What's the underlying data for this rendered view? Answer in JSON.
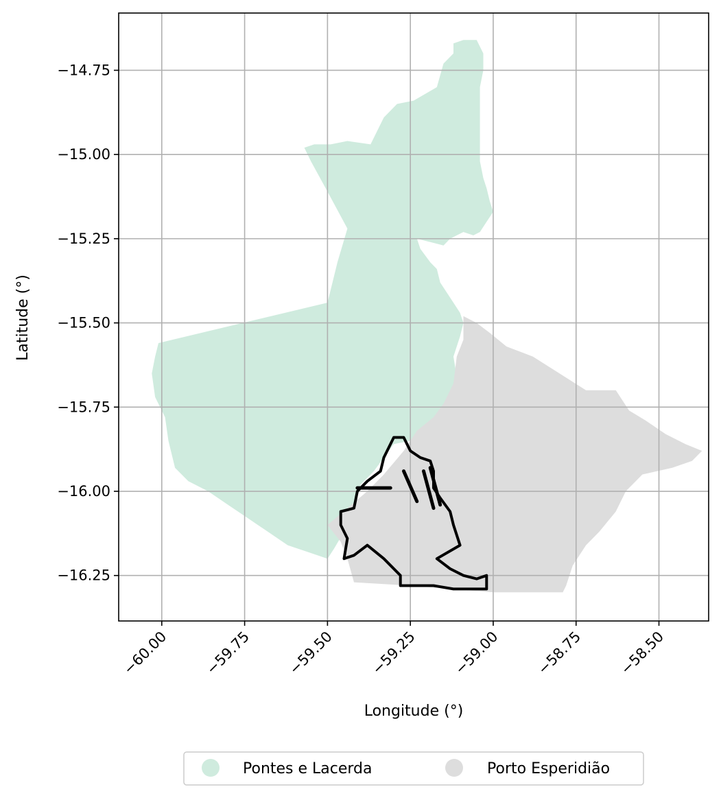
{
  "chart_data": {
    "type": "map",
    "xlabel": "Longitude (°)",
    "ylabel": "Latitude (°)",
    "xlim": [
      -60.13,
      -58.35
    ],
    "ylim": [
      -16.385,
      -14.58
    ],
    "xticks": [
      -60.0,
      -59.75,
      -59.5,
      -59.25,
      -59.0,
      -58.75,
      -58.5
    ],
    "xtick_labels": [
      "−60.00",
      "−59.75",
      "−59.50",
      "−59.25",
      "−59.00",
      "−58.75",
      "−58.50"
    ],
    "yticks": [
      -14.75,
      -15.0,
      -15.25,
      -15.5,
      -15.75,
      -16.0,
      -16.25
    ],
    "ytick_labels": [
      "−14.75",
      "−15.00",
      "−15.25",
      "−15.50",
      "−15.75",
      "−16.00",
      "−16.25"
    ],
    "grid": true,
    "legend": {
      "placement": "bottom-center",
      "entries": [
        {
          "label": "Pontes e Lacerda",
          "color": "#cfebde"
        },
        {
          "label": "Porto Esperidião",
          "color": "#dddddd"
        }
      ]
    },
    "regions": [
      {
        "name": "Pontes e Lacerda",
        "color": "#cfebde",
        "polygon": [
          [
            -59.09,
            -14.66
          ],
          [
            -59.05,
            -14.66
          ],
          [
            -59.03,
            -14.7
          ],
          [
            -59.03,
            -14.75
          ],
          [
            -59.04,
            -14.8
          ],
          [
            -59.04,
            -14.88
          ],
          [
            -59.04,
            -14.95
          ],
          [
            -59.04,
            -15.02
          ],
          [
            -59.03,
            -15.07
          ],
          [
            -59.02,
            -15.1
          ],
          [
            -59.01,
            -15.14
          ],
          [
            -59.0,
            -15.17
          ],
          [
            -59.02,
            -15.2
          ],
          [
            -59.04,
            -15.23
          ],
          [
            -59.06,
            -15.24
          ],
          [
            -59.09,
            -15.23
          ],
          [
            -59.13,
            -15.25
          ],
          [
            -59.15,
            -15.27
          ],
          [
            -59.19,
            -15.26
          ],
          [
            -59.23,
            -15.25
          ],
          [
            -59.22,
            -15.28
          ],
          [
            -59.19,
            -15.32
          ],
          [
            -59.17,
            -15.34
          ],
          [
            -59.16,
            -15.38
          ],
          [
            -59.14,
            -15.41
          ],
          [
            -59.12,
            -15.44
          ],
          [
            -59.1,
            -15.47
          ],
          [
            -59.09,
            -15.5
          ],
          [
            -59.1,
            -15.54
          ],
          [
            -59.12,
            -15.6
          ],
          [
            -59.11,
            -15.66
          ],
          [
            -59.12,
            -15.72
          ],
          [
            -59.14,
            -15.77
          ],
          [
            -59.17,
            -15.81
          ],
          [
            -59.2,
            -15.84
          ],
          [
            -59.25,
            -15.85
          ],
          [
            -59.3,
            -15.86
          ],
          [
            -59.36,
            -15.94
          ],
          [
            -59.4,
            -15.98
          ],
          [
            -59.42,
            -16.05
          ],
          [
            -59.44,
            -16.08
          ],
          [
            -59.45,
            -16.12
          ],
          [
            -59.48,
            -16.17
          ],
          [
            -59.5,
            -16.2
          ],
          [
            -59.56,
            -16.18
          ],
          [
            -59.62,
            -16.16
          ],
          [
            -59.68,
            -16.12
          ],
          [
            -59.74,
            -16.08
          ],
          [
            -59.8,
            -16.04
          ],
          [
            -59.86,
            -16.0
          ],
          [
            -59.92,
            -15.97
          ],
          [
            -59.96,
            -15.93
          ],
          [
            -59.98,
            -15.85
          ],
          [
            -59.99,
            -15.78
          ],
          [
            -60.02,
            -15.72
          ],
          [
            -60.03,
            -15.65
          ],
          [
            -60.02,
            -15.6
          ],
          [
            -60.01,
            -15.56
          ],
          [
            -59.5,
            -15.44
          ],
          [
            -59.47,
            -15.32
          ],
          [
            -59.44,
            -15.22
          ],
          [
            -59.5,
            -15.11
          ],
          [
            -59.55,
            -15.02
          ],
          [
            -59.57,
            -14.98
          ],
          [
            -59.54,
            -14.97
          ],
          [
            -59.49,
            -14.97
          ],
          [
            -59.44,
            -14.96
          ],
          [
            -59.37,
            -14.97
          ],
          [
            -59.33,
            -14.89
          ],
          [
            -59.29,
            -14.85
          ],
          [
            -59.24,
            -14.84
          ],
          [
            -59.17,
            -14.8
          ],
          [
            -59.15,
            -14.73
          ],
          [
            -59.12,
            -14.7
          ],
          [
            -59.12,
            -14.67
          ]
        ]
      },
      {
        "name": "Porto Esperidião",
        "color": "#dddddd",
        "polygon": [
          [
            -59.09,
            -15.48
          ],
          [
            -59.05,
            -15.5
          ],
          [
            -59.01,
            -15.53
          ],
          [
            -58.96,
            -15.57
          ],
          [
            -58.88,
            -15.6
          ],
          [
            -58.8,
            -15.65
          ],
          [
            -58.72,
            -15.7
          ],
          [
            -58.63,
            -15.7
          ],
          [
            -58.59,
            -15.76
          ],
          [
            -58.54,
            -15.79
          ],
          [
            -58.48,
            -15.83
          ],
          [
            -58.42,
            -15.86
          ],
          [
            -58.37,
            -15.88
          ],
          [
            -58.4,
            -15.91
          ],
          [
            -58.46,
            -15.93
          ],
          [
            -58.55,
            -15.95
          ],
          [
            -58.6,
            -16.0
          ],
          [
            -58.63,
            -16.06
          ],
          [
            -58.68,
            -16.12
          ],
          [
            -58.72,
            -16.16
          ],
          [
            -58.76,
            -16.22
          ],
          [
            -58.78,
            -16.28
          ],
          [
            -58.79,
            -16.3
          ],
          [
            -59.0,
            -16.3
          ],
          [
            -59.25,
            -16.28
          ],
          [
            -59.42,
            -16.27
          ],
          [
            -59.44,
            -16.2
          ],
          [
            -59.46,
            -16.15
          ],
          [
            -59.5,
            -16.1
          ],
          [
            -59.44,
            -16.05
          ],
          [
            -59.38,
            -16.0
          ],
          [
            -59.33,
            -15.95
          ],
          [
            -59.27,
            -15.88
          ],
          [
            -59.23,
            -15.82
          ],
          [
            -59.18,
            -15.78
          ],
          [
            -59.15,
            -15.74
          ],
          [
            -59.12,
            -15.68
          ],
          [
            -59.11,
            -15.6
          ],
          [
            -59.09,
            -15.55
          ]
        ]
      }
    ],
    "outline": {
      "stroke": "#000000",
      "polygon": [
        [
          -59.3,
          -15.84
        ],
        [
          -59.27,
          -15.84
        ],
        [
          -59.25,
          -15.88
        ],
        [
          -59.22,
          -15.9
        ],
        [
          -59.19,
          -15.91
        ],
        [
          -59.18,
          -15.94
        ],
        [
          -59.18,
          -15.99
        ],
        [
          -59.16,
          -16.02
        ],
        [
          -59.13,
          -16.06
        ],
        [
          -59.12,
          -16.1
        ],
        [
          -59.1,
          -16.16
        ],
        [
          -59.17,
          -16.2
        ],
        [
          -59.13,
          -16.23
        ],
        [
          -59.09,
          -16.25
        ],
        [
          -59.05,
          -16.26
        ],
        [
          -59.02,
          -16.25
        ],
        [
          -59.02,
          -16.29
        ],
        [
          -59.12,
          -16.29
        ],
        [
          -59.18,
          -16.28
        ],
        [
          -59.22,
          -16.28
        ],
        [
          -59.28,
          -16.28
        ],
        [
          -59.28,
          -16.25
        ],
        [
          -59.33,
          -16.2
        ],
        [
          -59.38,
          -16.16
        ],
        [
          -59.42,
          -16.19
        ],
        [
          -59.45,
          -16.2
        ],
        [
          -59.44,
          -16.14
        ],
        [
          -59.46,
          -16.1
        ],
        [
          -59.46,
          -16.06
        ],
        [
          -59.42,
          -16.05
        ],
        [
          -59.41,
          -16.0
        ],
        [
          -59.38,
          -15.97
        ],
        [
          -59.34,
          -15.94
        ],
        [
          -59.33,
          -15.9
        ]
      ],
      "strips": [
        [
          [
            -59.41,
            -15.99
          ],
          [
            -59.31,
            -15.99
          ]
        ],
        [
          [
            -59.27,
            -15.94
          ],
          [
            -59.23,
            -16.03
          ]
        ],
        [
          [
            -59.21,
            -15.94
          ],
          [
            -59.18,
            -16.05
          ]
        ],
        [
          [
            -59.19,
            -15.93
          ],
          [
            -59.16,
            -16.04
          ]
        ]
      ]
    }
  }
}
